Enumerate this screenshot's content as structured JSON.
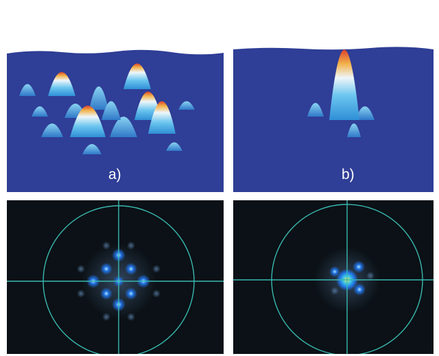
{
  "panels": [
    {
      "id": "a",
      "label": "a)"
    },
    {
      "id": "b",
      "label": "b)"
    }
  ],
  "colors": {
    "surface": "#2f3e96",
    "peak_low": "#4fb3e8",
    "peak_mid": "#e8f0f6",
    "peak_top": "#d9432b",
    "beam_background": "#0b1116",
    "crosshair": "#39b8b0",
    "spot_core": "#1f6fe0",
    "spot_halo": "#5a7ea8"
  }
}
